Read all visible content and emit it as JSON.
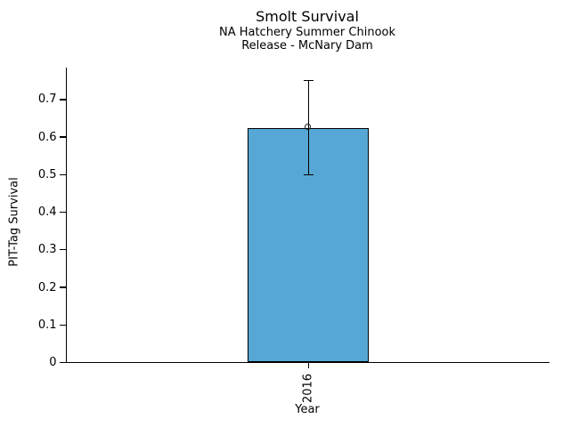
{
  "chart_data": {
    "type": "bar",
    "title": "Smolt Survival",
    "subtitle_line1": "NA Hatchery Summer Chinook",
    "subtitle_line2": "Release - McNary Dam",
    "xlabel": "Year",
    "ylabel": "PIT-Tag Survival",
    "categories": [
      "2016"
    ],
    "series": [
      {
        "name": "PIT-Tag Survival",
        "values": [
          0.625
        ],
        "error_low": [
          0.5
        ],
        "error_high": [
          0.75
        ]
      }
    ],
    "ylim": [
      0,
      0.785
    ],
    "yticks": [
      0,
      0.1,
      0.2,
      0.3,
      0.4,
      0.5,
      0.6,
      0.7
    ],
    "ytick_labels": [
      "0",
      "0.1",
      "0.2",
      "0.3",
      "0.4",
      "0.5",
      "0.6",
      "0.7"
    ],
    "grid": false,
    "legend_position": "none",
    "bar_color": "#56a7d5",
    "bar_edge_color": "#000000",
    "error_color": "#000000",
    "marker": "open-circle",
    "background_color": "#ffffff"
  }
}
